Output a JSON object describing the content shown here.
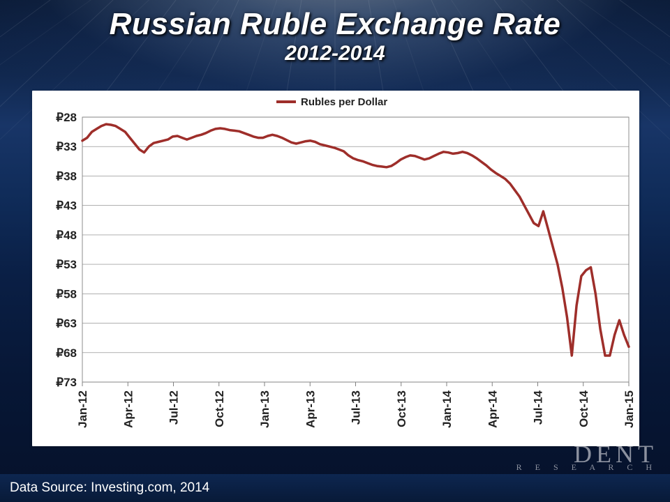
{
  "title": {
    "main": "Russian Ruble Exchange Rate",
    "sub": "2012-2014",
    "color": "#ffffff",
    "main_fontsize": 44,
    "sub_fontsize": 30,
    "italic": true,
    "bold": true
  },
  "chart": {
    "type": "line",
    "series_label": "Rubles per Dollar",
    "line_color": "#9e2e2a",
    "line_width": 3.5,
    "background_color": "#ffffff",
    "gridline_color": "#808080",
    "gridline_width": 0.6,
    "axis_color": "#808080",
    "plot_border": true,
    "tick_font_size": 17,
    "tick_font_weight": "bold",
    "tick_color": "#222222",
    "y_prefix": "₽",
    "y_axis": {
      "min": 28,
      "max": 73,
      "step": 5,
      "inverted": true,
      "ticks": [
        28,
        33,
        38,
        43,
        48,
        53,
        58,
        63,
        68,
        73
      ]
    },
    "x_axis": {
      "label_rotation": -90,
      "ticks": [
        "Jan-12",
        "Apr-12",
        "Jul-12",
        "Oct-12",
        "Jan-13",
        "Apr-13",
        "Jul-13",
        "Oct-13",
        "Jan-14",
        "Apr-14",
        "Jul-14",
        "Oct-14",
        "Jan-15"
      ]
    },
    "x_range_months": 37,
    "values": [
      32.0,
      31.5,
      30.5,
      30.0,
      29.5,
      29.2,
      29.3,
      29.5,
      30.0,
      30.5,
      31.5,
      32.5,
      33.5,
      34.0,
      33.0,
      32.4,
      32.2,
      32.0,
      31.8,
      31.3,
      31.2,
      31.5,
      31.8,
      31.5,
      31.2,
      31.0,
      30.7,
      30.3,
      30.0,
      29.9,
      30.0,
      30.2,
      30.3,
      30.4,
      30.7,
      31.0,
      31.3,
      31.5,
      31.5,
      31.2,
      31.0,
      31.2,
      31.5,
      31.9,
      32.3,
      32.5,
      32.3,
      32.1,
      32.0,
      32.2,
      32.6,
      32.8,
      33.0,
      33.2,
      33.5,
      33.8,
      34.5,
      35.0,
      35.3,
      35.5,
      35.8,
      36.1,
      36.3,
      36.4,
      36.5,
      36.3,
      35.8,
      35.2,
      34.8,
      34.5,
      34.6,
      34.9,
      35.2,
      35.0,
      34.6,
      34.2,
      33.9,
      34.0,
      34.2,
      34.1,
      33.9,
      34.1,
      34.5,
      35.0,
      35.6,
      36.2,
      36.9,
      37.5,
      38.0,
      38.5,
      39.3,
      40.4,
      41.5,
      43.0,
      44.5,
      46.0,
      46.5,
      44.0,
      47.0,
      50.0,
      53.0,
      57.0,
      62.0,
      68.5,
      60.0,
      55.0,
      54.0,
      53.5,
      58.0,
      64.0,
      68.5,
      68.5,
      65.0,
      62.5,
      65.0,
      67.0
    ]
  },
  "footer": {
    "text": "Data Source: Investing.com, 2014",
    "font_size": 19,
    "color": "#ffffff",
    "bg_gradient": [
      "#0d2650",
      "#081a38"
    ]
  },
  "brand": {
    "line1": "DENT",
    "line2": "R E S E A R C H",
    "color": "rgba(230,230,235,0.6)"
  },
  "slide_bg": {
    "gradient_stops": [
      "#0a1a35",
      "#0e2245",
      "#11284f",
      "#183567",
      "#0f2b58",
      "#0a1f45",
      "#071736",
      "#05112a"
    ]
  }
}
